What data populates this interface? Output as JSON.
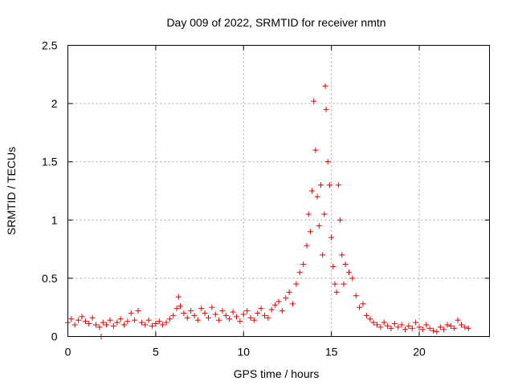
{
  "chart_data": {
    "type": "scatter",
    "title": "Day 009 of 2022, SRMTID for receiver nmtn",
    "xlabel": "GPS time / hours",
    "ylabel": "SRMTID / TECUs",
    "xlim": [
      0,
      24
    ],
    "ylim": [
      0,
      2.5
    ],
    "xticks": [
      0,
      5,
      10,
      15,
      20
    ],
    "xtick_labels": [
      "0",
      "5",
      "10",
      "15",
      "20"
    ],
    "yticks": [
      0,
      0.5,
      1,
      1.5,
      2,
      2.5
    ],
    "ytick_labels": [
      "0",
      "0.5",
      "1",
      "1.5",
      "2",
      "2.5"
    ],
    "grid": true,
    "marker": "+",
    "color": "#e00000",
    "series": [
      {
        "name": "SRMTID",
        "x": [
          0.0,
          0.2,
          0.4,
          0.6,
          0.8,
          1.0,
          1.2,
          1.4,
          1.6,
          1.8,
          1.9,
          2.0,
          2.2,
          2.4,
          2.6,
          2.8,
          3.0,
          3.2,
          3.4,
          3.6,
          3.8,
          4.0,
          4.2,
          4.4,
          4.6,
          4.8,
          5.0,
          5.2,
          5.4,
          5.6,
          5.8,
          6.0,
          6.2,
          6.3,
          6.4,
          6.6,
          6.8,
          7.0,
          7.2,
          7.4,
          7.6,
          7.8,
          8.0,
          8.2,
          8.4,
          8.6,
          8.8,
          9.0,
          9.2,
          9.4,
          9.6,
          9.8,
          10.0,
          10.2,
          10.4,
          10.6,
          10.8,
          11.0,
          11.2,
          11.4,
          11.6,
          11.8,
          12.0,
          12.2,
          12.4,
          12.6,
          12.8,
          13.0,
          13.2,
          13.4,
          13.6,
          13.7,
          13.8,
          13.9,
          14.0,
          14.1,
          14.2,
          14.3,
          14.4,
          14.5,
          14.6,
          14.65,
          14.7,
          14.8,
          14.9,
          15.0,
          15.1,
          15.2,
          15.3,
          15.4,
          15.5,
          15.6,
          15.7,
          15.8,
          16.0,
          16.2,
          16.4,
          16.6,
          16.8,
          17.0,
          17.2,
          17.4,
          17.6,
          17.8,
          18.0,
          18.2,
          18.4,
          18.6,
          18.8,
          19.0,
          19.2,
          19.4,
          19.6,
          19.8,
          20.0,
          20.2,
          20.4,
          20.6,
          20.8,
          21.0,
          21.2,
          21.4,
          21.6,
          21.8,
          22.0,
          22.2,
          22.4,
          22.6,
          22.8
        ],
        "y": [
          0.12,
          0.15,
          0.1,
          0.14,
          0.17,
          0.13,
          0.11,
          0.16,
          0.1,
          0.08,
          0.0,
          0.12,
          0.1,
          0.14,
          0.09,
          0.12,
          0.15,
          0.1,
          0.13,
          0.2,
          0.14,
          0.22,
          0.12,
          0.1,
          0.14,
          0.09,
          0.11,
          0.13,
          0.1,
          0.12,
          0.15,
          0.18,
          0.24,
          0.34,
          0.26,
          0.2,
          0.16,
          0.22,
          0.18,
          0.14,
          0.24,
          0.2,
          0.16,
          0.25,
          0.19,
          0.14,
          0.22,
          0.18,
          0.15,
          0.21,
          0.17,
          0.13,
          0.19,
          0.22,
          0.16,
          0.14,
          0.2,
          0.24,
          0.18,
          0.16,
          0.23,
          0.27,
          0.3,
          0.22,
          0.33,
          0.38,
          0.28,
          0.45,
          0.55,
          0.62,
          0.78,
          1.05,
          0.9,
          1.25,
          2.02,
          1.6,
          1.2,
          0.95,
          1.3,
          0.7,
          1.05,
          2.15,
          1.95,
          1.5,
          1.3,
          0.85,
          0.6,
          0.45,
          0.38,
          1.3,
          1.0,
          0.7,
          0.45,
          0.62,
          0.55,
          0.5,
          0.35,
          0.25,
          0.28,
          0.18,
          0.15,
          0.12,
          0.1,
          0.08,
          0.12,
          0.09,
          0.07,
          0.11,
          0.08,
          0.1,
          0.06,
          0.09,
          0.07,
          0.12,
          0.08,
          0.06,
          0.1,
          0.07,
          0.05,
          0.04,
          0.08,
          0.06,
          0.1,
          0.09,
          0.07,
          0.14,
          0.1,
          0.08,
          0.07
        ]
      }
    ]
  }
}
